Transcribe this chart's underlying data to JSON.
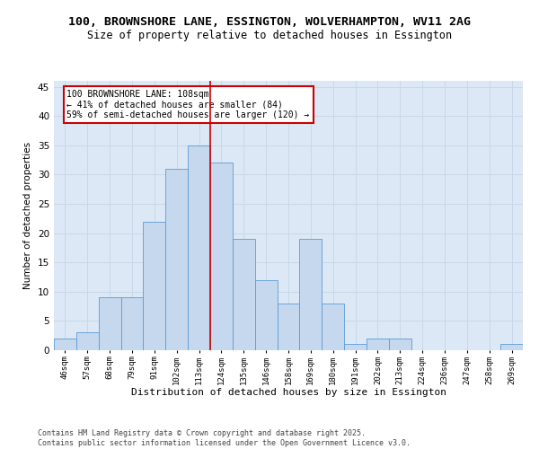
{
  "title_line1": "100, BROWNSHORE LANE, ESSINGTON, WOLVERHAMPTON, WV11 2AG",
  "title_line2": "Size of property relative to detached houses in Essington",
  "xlabel": "Distribution of detached houses by size in Essington",
  "ylabel": "Number of detached properties",
  "categories": [
    "46sqm",
    "57sqm",
    "68sqm",
    "79sqm",
    "91sqm",
    "102sqm",
    "113sqm",
    "124sqm",
    "135sqm",
    "146sqm",
    "158sqm",
    "169sqm",
    "180sqm",
    "191sqm",
    "202sqm",
    "213sqm",
    "224sqm",
    "236sqm",
    "247sqm",
    "258sqm",
    "269sqm"
  ],
  "values": [
    2,
    3,
    9,
    9,
    22,
    31,
    35,
    32,
    19,
    12,
    8,
    19,
    8,
    1,
    2,
    2,
    0,
    0,
    0,
    0,
    1
  ],
  "bar_color": "#c5d8ed",
  "bar_edge_color": "#5b9bd5",
  "vline_x": 6.5,
  "vline_color": "#cc0000",
  "annotation_text": "100 BROWNSHORE LANE: 108sqm\n← 41% of detached houses are smaller (84)\n59% of semi-detached houses are larger (120) →",
  "annotation_box_color": "white",
  "annotation_box_edge_color": "#cc0000",
  "ylim": [
    0,
    46
  ],
  "yticks": [
    0,
    5,
    10,
    15,
    20,
    25,
    30,
    35,
    40,
    45
  ],
  "grid_color": "#c8d8e8",
  "background_color": "#dce8f5",
  "footer_line1": "Contains HM Land Registry data © Crown copyright and database right 2025.",
  "footer_line2": "Contains public sector information licensed under the Open Government Licence v3.0.",
  "title1_fontsize": 9.5,
  "title2_fontsize": 8.5,
  "annotation_fontsize": 7.0,
  "footer_fontsize": 6.0,
  "ylabel_fontsize": 7.5,
  "xlabel_fontsize": 8.0,
  "xtick_fontsize": 6.5,
  "ytick_fontsize": 7.5
}
